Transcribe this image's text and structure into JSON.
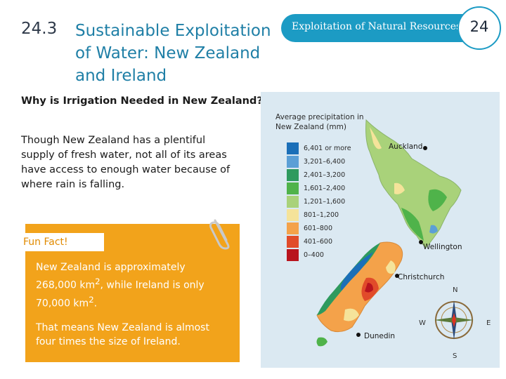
{
  "header": {
    "section_number": "24.3",
    "section_title": "Sustainable Exploitation of Water: New Zealand and Ireland",
    "chapter_label": "Exploitation of Natural Resources",
    "chapter_number": "24",
    "accent_color": "#1c9bc4"
  },
  "body": {
    "question": "Why is Irrigation Needed in New Zealand?",
    "paragraph": "Though New Zealand has a plentiful supply of fresh water, not all of its areas have access to enough water because of where rain is falling."
  },
  "fun_fact": {
    "title": "Fun Fact!",
    "p1_prefix": "New Zealand is approximately 268,000 km",
    "p1_mid": ", while Ireland is only 70,000 km",
    "p1_end": ".",
    "superscript": "2",
    "p2": "That means New Zealand is almost four times the size of Ireland.",
    "box_color": "#f2a31b"
  },
  "map": {
    "legend_title": "Average precipitation in New Zealand (mm)",
    "legend": [
      {
        "label": "6,401 or more",
        "color": "#1b6fb8"
      },
      {
        "label": "3,201–6,400",
        "color": "#5b9fd6"
      },
      {
        "label": "2,401–3,200",
        "color": "#2e9a5e"
      },
      {
        "label": "1,601–2,400",
        "color": "#4fb34a"
      },
      {
        "label": "1,201–1,600",
        "color": "#a9d27a"
      },
      {
        "label": "801–1,200",
        "color": "#f5e39a"
      },
      {
        "label": "601–800",
        "color": "#f4a24a"
      },
      {
        "label": "401–600",
        "color": "#e14b2a"
      },
      {
        "label": "0–400",
        "color": "#b8141e"
      }
    ],
    "cities": {
      "auckland": "Auckland",
      "wellington": "Wellington",
      "christchurch": "Christchurch",
      "dunedin": "Dunedin"
    },
    "compass": {
      "n": "N",
      "s": "S",
      "e": "E",
      "w": "W"
    }
  }
}
